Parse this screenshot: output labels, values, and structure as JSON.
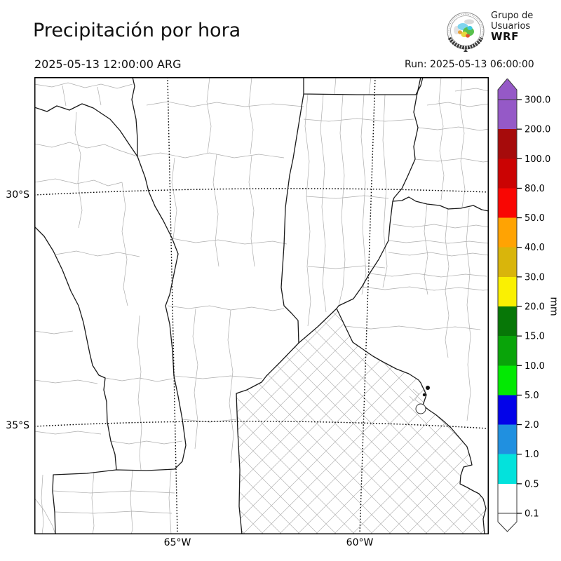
{
  "header": {
    "title": "Precipitación por hora",
    "valid_time": "2025-05-13 12:00:00 ARG",
    "run_label": "Run: 2025-05-13 06:00:00"
  },
  "logo": {
    "line1": "Grupo de",
    "line2": "Usuarios",
    "line3": "WRF"
  },
  "axes": {
    "lat_labels": [
      "30°S",
      "35°S"
    ],
    "lon_labels": [
      "65°W",
      "60°W"
    ]
  },
  "colorbar": {
    "unit": "mm",
    "tick_labels": [
      "300.0",
      "200.0",
      "100.0",
      "80.0",
      "50.0",
      "40.0",
      "30.0",
      "20.0",
      "15.0",
      "10.0",
      "5.0",
      "2.0",
      "1.0",
      "0.5",
      "0.1"
    ],
    "band_colors": [
      "#9559C7",
      "#A60B0B",
      "#CB0303",
      "#F90603",
      "#FFA303",
      "#D9B50B",
      "#FAF002",
      "#077707",
      "#09A409",
      "#03E903",
      "#0303E9",
      "#2090E0",
      "#03E2DC",
      "#FFFFFF"
    ],
    "over_color": "#9559C7",
    "under_color": "#FFFFFF",
    "outline_color": "#3A3A3A"
  }
}
